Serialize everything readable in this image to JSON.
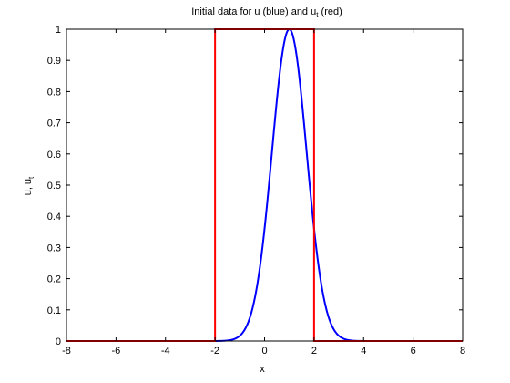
{
  "chart_data": {
    "type": "line",
    "title": "Initial data for u (blue) and u",
    "title_subscript": "t",
    "title_suffix": " (red)",
    "xlabel": "x",
    "ylabel": "u, u",
    "ylabel_subscript": "t",
    "xlim": [
      -8,
      8
    ],
    "ylim": [
      0,
      1
    ],
    "xticks": [
      -8,
      -6,
      -4,
      -2,
      0,
      2,
      4,
      6,
      8
    ],
    "yticks": [
      0,
      0.1,
      0.2,
      0.3,
      0.4,
      0.5,
      0.6,
      0.7,
      0.8,
      0.9,
      1
    ],
    "grid": false,
    "legend": "none",
    "series": [
      {
        "color": "#0000ff",
        "curve": "gaussian",
        "center": 1,
        "peak": 1,
        "sigma": 0.7,
        "x_domain": [
          -5,
          7
        ]
      },
      {
        "color": "#ff0000",
        "curve": "step",
        "x": [
          -8,
          -2,
          -2,
          2,
          2,
          8
        ],
        "y": [
          0,
          0,
          1,
          1,
          0,
          0
        ]
      }
    ]
  }
}
